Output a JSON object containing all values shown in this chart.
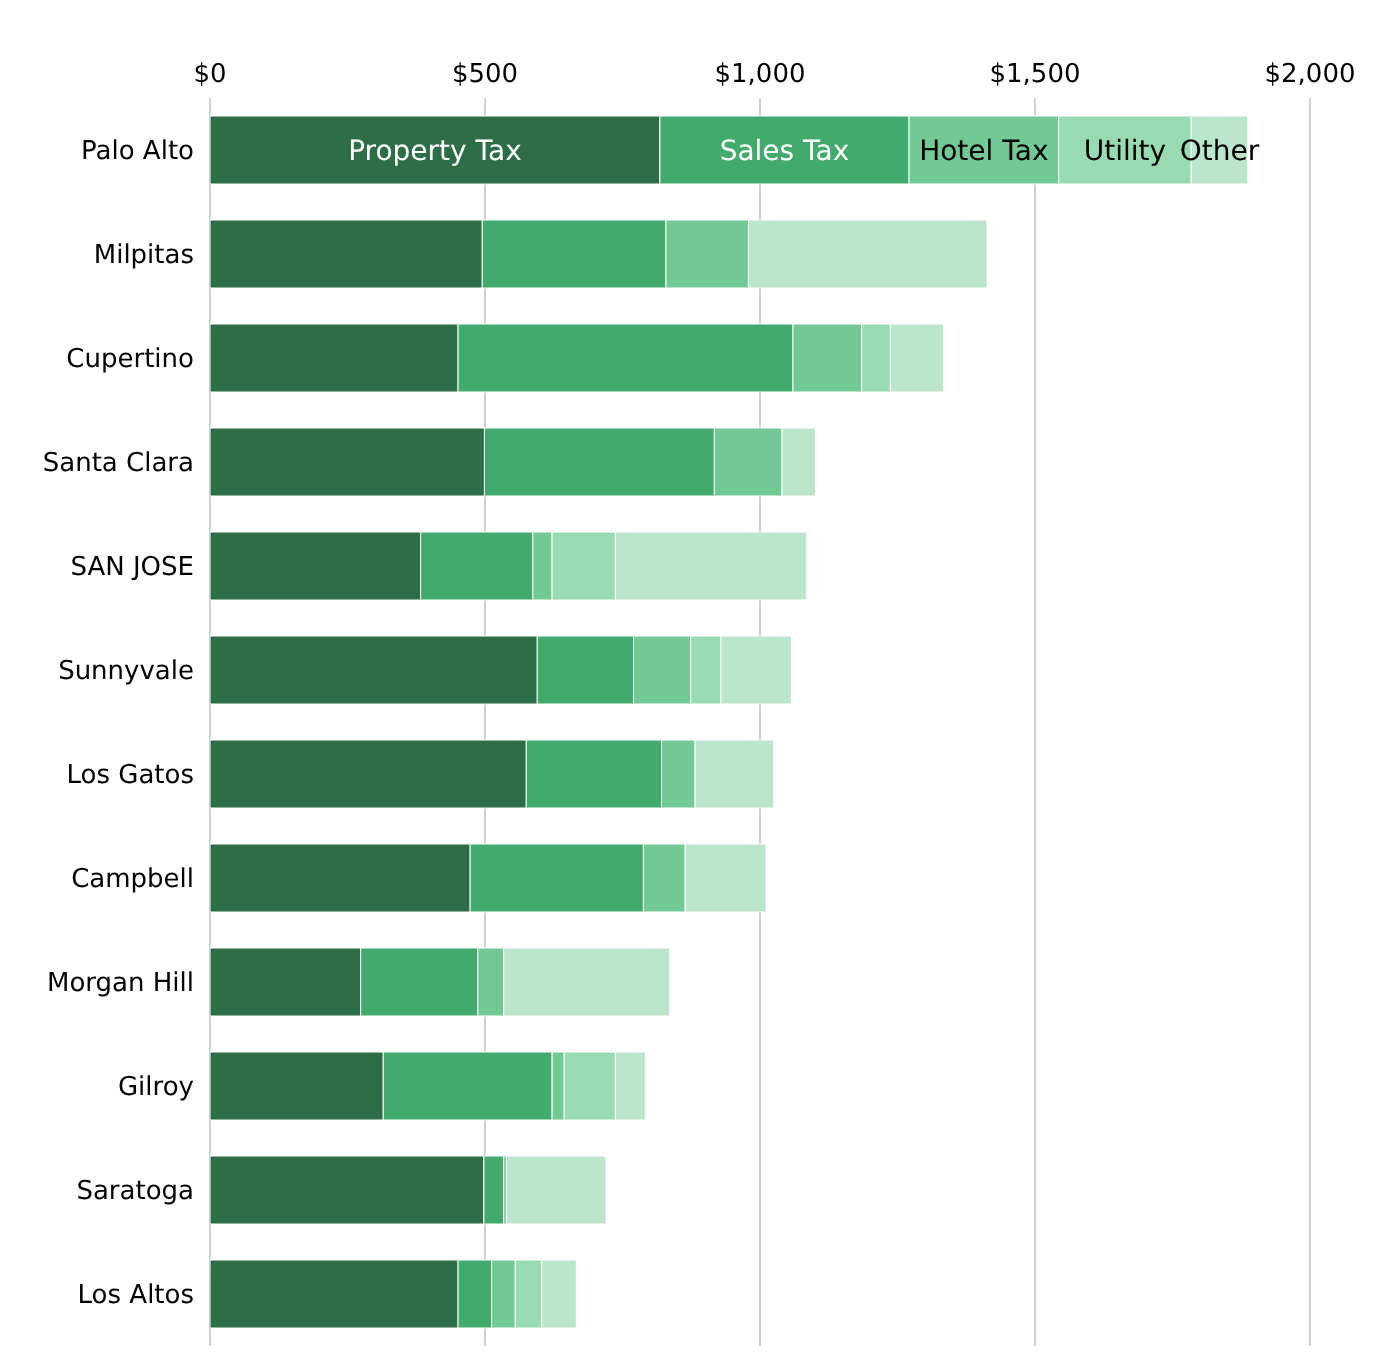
{
  "chart_data": {
    "type": "bar",
    "orientation": "horizontal",
    "stacked": true,
    "categories": [
      "Palo Alto",
      "Milpitas",
      "Cupertino",
      "Santa Clara",
      "SAN JOSE",
      "Sunnyvale",
      "Los Gatos",
      "Campbell",
      "Morgan Hill",
      "Gilroy",
      "Saratoga",
      "Los Altos"
    ],
    "series": [
      {
        "name": "Property Tax",
        "color": "#2d6e47",
        "values": [
          818,
          495,
          451,
          499,
          383,
          595,
          575,
          473,
          274,
          315,
          498,
          451
        ]
      },
      {
        "name": "Sales Tax",
        "color": "#42ab6c",
        "values": [
          453,
          334,
          609,
          418,
          204,
          175,
          246,
          315,
          213,
          307,
          36,
          61
        ]
      },
      {
        "name": "Hotel Tax",
        "color": "#72c994",
        "values": [
          272,
          150,
          125,
          123,
          35,
          104,
          61,
          76,
          47,
          22,
          5,
          43
        ]
      },
      {
        "name": "Utility",
        "color": "#98dbb0",
        "values": [
          241,
          0,
          52,
          0,
          115,
          55,
          0,
          0,
          0,
          93,
          0,
          48
        ]
      },
      {
        "name": "Other",
        "color": "#bce6cc",
        "values": [
          103,
          434,
          97,
          61,
          348,
          128,
          143,
          147,
          302,
          55,
          181,
          63
        ]
      }
    ],
    "xlim": [
      0,
      2000
    ],
    "xticks": [
      {
        "value": 0,
        "label": "$0"
      },
      {
        "value": 500,
        "label": "$500"
      },
      {
        "value": 1000,
        "label": "$1,000"
      },
      {
        "value": 1500,
        "label": "$1,500"
      },
      {
        "value": 2000,
        "label": "$2,000"
      }
    ],
    "grid": "x",
    "legend": false
  }
}
